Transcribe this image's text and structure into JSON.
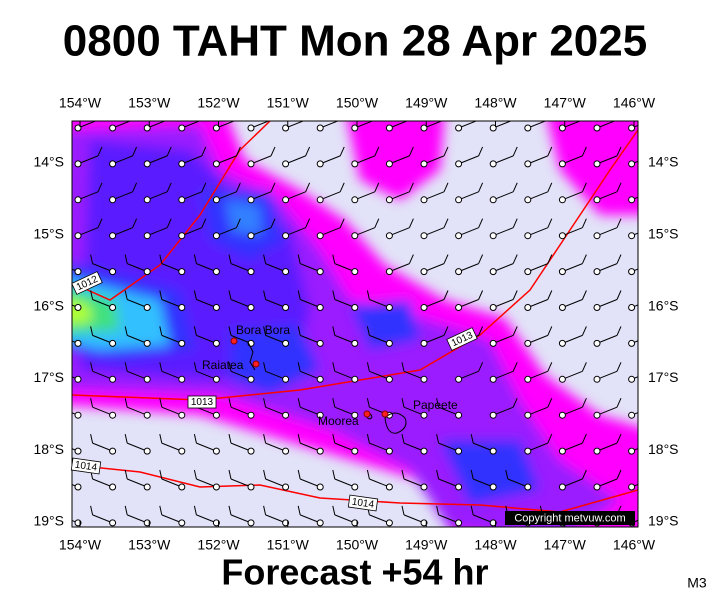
{
  "header": {
    "title": "0800 TAHT Mon 28 Apr 2025"
  },
  "map": {
    "lon_labels": [
      "154°W",
      "153°W",
      "152°W",
      "151°W",
      "150°W",
      "149°W",
      "148°W",
      "147°W",
      "146°W"
    ],
    "lat_labels": [
      "14°S",
      "15°S",
      "16°S",
      "17°S",
      "18°S",
      "19°S"
    ],
    "places": [
      "Bora Bora",
      "Raiatea",
      "Moorea",
      "Papeete"
    ],
    "isobar_labels": [
      "1012",
      "1013",
      "1013",
      "1014",
      "1014"
    ],
    "copyright": "Copyright metvuw.com"
  },
  "footer": {
    "forecast": "Forecast +54 hr",
    "model": "M3"
  }
}
